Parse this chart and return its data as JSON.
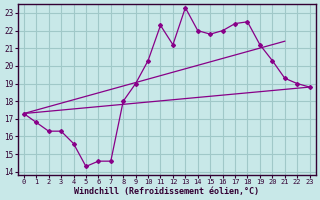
{
  "xlabel": "Windchill (Refroidissement éolien,°C)",
  "xlim": [
    -0.5,
    23.5
  ],
  "ylim": [
    13.8,
    23.5
  ],
  "yticks": [
    14,
    15,
    16,
    17,
    18,
    19,
    20,
    21,
    22,
    23
  ],
  "xticks": [
    0,
    1,
    2,
    3,
    4,
    5,
    6,
    7,
    8,
    9,
    10,
    11,
    12,
    13,
    14,
    15,
    16,
    17,
    18,
    19,
    20,
    21,
    22,
    23
  ],
  "bg_color": "#c8e8e8",
  "grid_color": "#a0c8c8",
  "line_color": "#880088",
  "line1_y": [
    17.3,
    16.8,
    16.3,
    16.3,
    15.6,
    14.3,
    14.6,
    14.6,
    18.0,
    19.0,
    20.3,
    22.3,
    21.2,
    23.3,
    22.0,
    21.8,
    22.0,
    22.4,
    22.5,
    21.2,
    20.3,
    19.3,
    19.0,
    18.8
  ],
  "line2_x": [
    0,
    23
  ],
  "line2_y": [
    17.3,
    18.8
  ],
  "line3_x": [
    0,
    21
  ],
  "line3_y": [
    17.3,
    21.4
  ],
  "xlabel_fontsize": 6.0,
  "tick_fontsize": 5.5
}
